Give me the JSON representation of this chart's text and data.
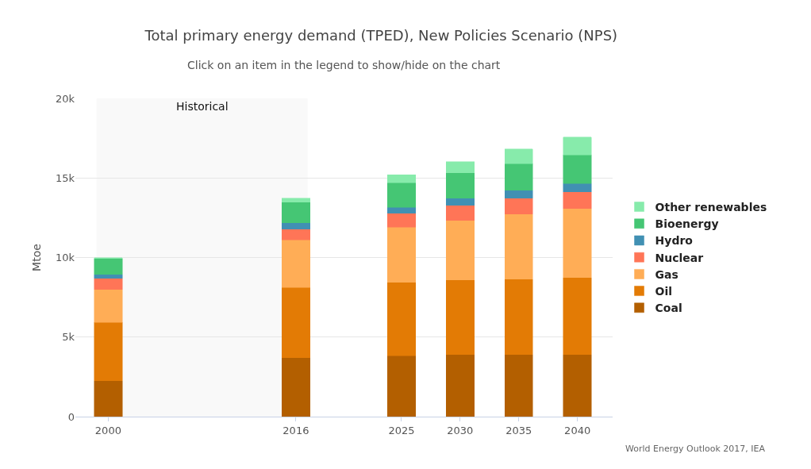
{
  "chart_data": {
    "type": "bar",
    "stacked": true,
    "title": "Total primary energy demand (TPED), New Policies Scenario (NPS)",
    "subtitle": "Click on an item in the legend to show/hide on the chart",
    "ylabel": "Mtoe",
    "x": [
      2000,
      2016,
      2025,
      2030,
      2035,
      2040
    ],
    "series": [
      {
        "name": "Coal",
        "color": "#b35f00",
        "values": [
          2250,
          3700,
          3820,
          3900,
          3900,
          3900
        ]
      },
      {
        "name": "Oil",
        "color": "#e37b05",
        "values": [
          3670,
          4420,
          4630,
          4680,
          4750,
          4850
        ]
      },
      {
        "name": "Gas",
        "color": "#ffad56",
        "values": [
          2080,
          3000,
          3450,
          3750,
          4080,
          4330
        ]
      },
      {
        "name": "Nuclear",
        "color": "#ff7557",
        "values": [
          700,
          660,
          870,
          950,
          990,
          1050
        ]
      },
      {
        "name": "Hydro",
        "color": "#4190b3",
        "values": [
          230,
          390,
          380,
          440,
          500,
          520
        ]
      },
      {
        "name": "Bioenergy",
        "color": "#45c674",
        "values": [
          1020,
          1310,
          1550,
          1600,
          1680,
          1800
        ]
      },
      {
        "name": "Other renewables",
        "color": "#87ebab",
        "values": [
          50,
          250,
          500,
          700,
          920,
          1120
        ]
      }
    ],
    "xlim": [
      1997.2,
      2043
    ],
    "xticks": [
      2000,
      2016,
      2025,
      2030,
      2035,
      2040
    ],
    "ylim": [
      0,
      20000
    ],
    "yticks": [
      0,
      {
        "value": 5000,
        "label": "5k"
      },
      {
        "value": 10000,
        "label": "10k"
      },
      {
        "value": 15000,
        "label": "15k"
      },
      {
        "value": 20000,
        "label": "20k"
      }
    ],
    "bands": [
      {
        "axis": "x",
        "from": 1999,
        "to": 2017,
        "label": "Historical",
        "color": "#f9f9f9"
      }
    ],
    "annotations": [
      "World Energy Outlook 2017, IEA"
    ],
    "grid": "y",
    "legend": "right"
  }
}
